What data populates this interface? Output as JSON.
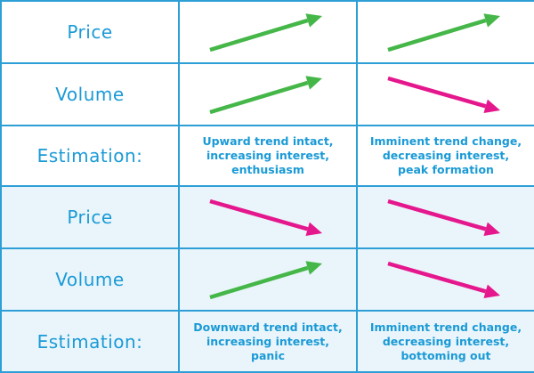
{
  "colors": {
    "grid_line": "#2d9fd6",
    "text": "#1a9ad6",
    "shaded_bg": "#eaf5fb",
    "up_arrow": "#45b749",
    "down_arrow": "#e5178d"
  },
  "sections": [
    {
      "price_label": "Price",
      "volume_label": "Volume",
      "estimation_label": "Estimation:",
      "columns": [
        {
          "price_direction": "up",
          "volume_direction": "up",
          "estimation_lines": [
            "Upward trend intact,",
            "increasing interest,",
            "enthusiasm"
          ]
        },
        {
          "price_direction": "up",
          "volume_direction": "down",
          "estimation_lines": [
            "Imminent trend change,",
            "decreasing interest,",
            "peak formation"
          ]
        }
      ]
    },
    {
      "price_label": "Price",
      "volume_label": "Volume",
      "estimation_label": "Estimation:",
      "columns": [
        {
          "price_direction": "down",
          "volume_direction": "up",
          "estimation_lines": [
            "Downward trend intact,",
            "increasing interest,",
            "panic"
          ]
        },
        {
          "price_direction": "down",
          "volume_direction": "down",
          "estimation_lines": [
            "Imminent trend change,",
            "decreasing interest,",
            "bottoming out"
          ]
        }
      ]
    }
  ]
}
